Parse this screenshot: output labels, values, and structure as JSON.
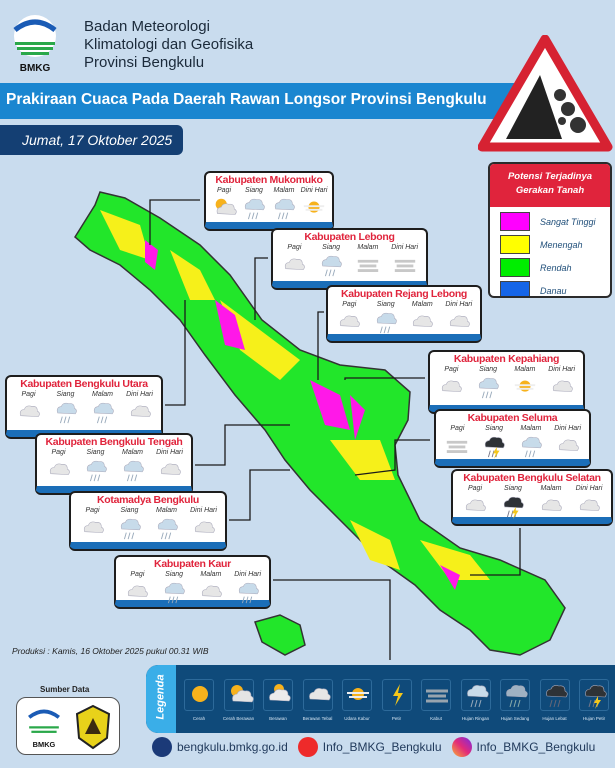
{
  "header": {
    "org_lines": [
      "Badan Meteorologi",
      "Klimatologi dan Geofisika",
      "Provinsi Bengkulu"
    ],
    "logo_text": "BMKG",
    "title": "Prakiraan Cuaca Pada Daerah Rawan Longsor Provinsi Bengkulu",
    "date": "Jumat, 17 Oktober 2025"
  },
  "potensi": {
    "title": "Potensi Terjadinya Gerakan Tanah",
    "items": [
      {
        "label": "Sangat Tinggi",
        "color": "#ff00ff"
      },
      {
        "label": "Menengah",
        "color": "#ffff00"
      },
      {
        "label": "Rendah",
        "color": "#00ee00"
      },
      {
        "label": "Danau",
        "color": "#1565e8"
      }
    ]
  },
  "periods": [
    "Pagi",
    "Siang",
    "Malam",
    "Dini Hari"
  ],
  "districts": [
    {
      "name": "Kabupaten Mukomuko",
      "icons": [
        "cerah-berawan",
        "hujan-ringan",
        "hujan-ringan",
        "udara-kabur"
      ]
    },
    {
      "name": "Kabupaten Lebong",
      "icons": [
        "berawan-tebal",
        "hujan-ringan",
        "kabut",
        "kabut"
      ]
    },
    {
      "name": "Kabupaten Rejang Lebong",
      "icons": [
        "berawan-tebal",
        "hujan-ringan",
        "berawan-tebal",
        "berawan-tebal"
      ]
    },
    {
      "name": "Kabupaten Kepahiang",
      "icons": [
        "berawan-tebal",
        "hujan-ringan",
        "udara-kabur",
        "berawan-tebal"
      ]
    },
    {
      "name": "Kabupaten Seluma",
      "icons": [
        "kabut",
        "hujan-petir",
        "hujan-ringan",
        "berawan-tebal"
      ]
    },
    {
      "name": "Kabupaten Bengkulu Selatan",
      "icons": [
        "berawan-tebal",
        "hujan-petir",
        "berawan-tebal",
        "berawan-tebal"
      ]
    },
    {
      "name": "Kabupaten Bengkulu Utara",
      "icons": [
        "berawan-tebal",
        "hujan-ringan",
        "hujan-ringan",
        "berawan-tebal"
      ]
    },
    {
      "name": "Kabupaten Bengkulu Tengah",
      "icons": [
        "berawan-tebal",
        "hujan-ringan",
        "hujan-ringan",
        "berawan-tebal"
      ]
    },
    {
      "name": "Kotamadya Bengkulu",
      "icons": [
        "berawan-tebal",
        "hujan-ringan",
        "hujan-ringan",
        "berawan-tebal"
      ]
    },
    {
      "name": "Kabupaten Kaur",
      "icons": [
        "berawan-tebal",
        "hujan-ringan",
        "berawan-tebal",
        "hujan-ringan"
      ]
    }
  ],
  "produksi": "Produksi : Kamis, 16 Oktober 2025 pukul 00.31 WIB",
  "sumber": {
    "label": "Sumber Data",
    "logo_text": "BMKG"
  },
  "legend": {
    "title": "Legenda",
    "items": [
      {
        "label": "Cerah",
        "icon": "cerah"
      },
      {
        "label": "Cerah Berawan",
        "icon": "cerah-berawan"
      },
      {
        "label": "Berawan",
        "icon": "berawan"
      },
      {
        "label": "Berawan Tebal",
        "icon": "berawan-tebal"
      },
      {
        "label": "Udara Kabur",
        "icon": "udara-kabur"
      },
      {
        "label": "Petir",
        "icon": "petir"
      },
      {
        "label": "Kabut",
        "icon": "kabut"
      },
      {
        "label": "Hujan Ringan",
        "icon": "hujan-ringan"
      },
      {
        "label": "Hujan Sedang",
        "icon": "hujan-sedang"
      },
      {
        "label": "Hujan Lebat",
        "icon": "hujan-lebat"
      },
      {
        "label": "Hujan Petir",
        "icon": "hujan-petir"
      }
    ]
  },
  "footer": {
    "website": "bengkulu.bmkg.go.id",
    "youtube": "Info_BMKG_Bengkulu",
    "instagram": "Info_BMKG_Bengkulu"
  }
}
